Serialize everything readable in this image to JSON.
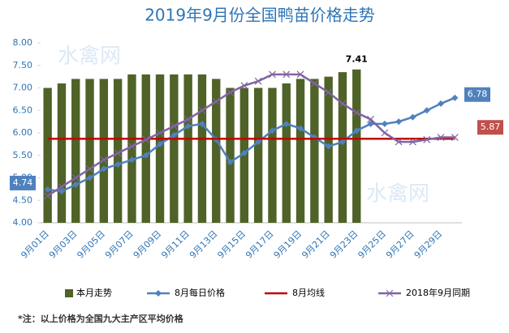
{
  "chart_data": {
    "type": "combo",
    "title": "2019年9月份全国鸭苗价格走势",
    "watermark": "水禽网",
    "note": "*注：以上价格为全国九大主产区平均价格",
    "categories": [
      "9月01日",
      null,
      "9月03日",
      null,
      "9月05日",
      null,
      "9月07日",
      null,
      "9月09日",
      null,
      "9月11日",
      null,
      "9月13日",
      null,
      "9月15日",
      null,
      "9月17日",
      null,
      "9月19日",
      null,
      "9月21日",
      null,
      "9月23日",
      null,
      "9月25日",
      null,
      "9月27日",
      null,
      "9月29日",
      null
    ],
    "ylim": [
      4,
      8
    ],
    "yticks": [
      {
        "value": 4,
        "label": "4.00"
      },
      {
        "value": 4.5,
        "label": "4.50"
      },
      {
        "value": 5,
        "label": "5.00"
      },
      {
        "value": 5.5,
        "label": "5.50"
      },
      {
        "value": 6,
        "label": "6.00"
      },
      {
        "value": 6.5,
        "label": "6.50"
      },
      {
        "value": 7,
        "label": "7.00"
      },
      {
        "value": 7.5,
        "label": "7.50"
      },
      {
        "value": 8,
        "label": "8.00"
      }
    ],
    "grid": false,
    "legend": "bottom",
    "series": [
      {
        "name": "本月走势",
        "type": "bar",
        "color": "#4f6228",
        "values": [
          7.0,
          7.1,
          7.2,
          7.2,
          7.2,
          7.2,
          7.3,
          7.3,
          7.3,
          7.3,
          7.3,
          7.3,
          7.2,
          7.0,
          7.0,
          7.0,
          7.0,
          7.1,
          7.2,
          7.2,
          7.25,
          7.35,
          7.41,
          null,
          null,
          null,
          null,
          null,
          null,
          null
        ],
        "labeled": [
          22
        ]
      },
      {
        "name": "8月每日价格",
        "type": "line",
        "marker": "diamond",
        "color": "#4f81bd",
        "values": [
          4.74,
          4.7,
          4.85,
          5.0,
          5.2,
          5.3,
          5.4,
          5.5,
          5.75,
          5.95,
          6.15,
          6.2,
          5.85,
          5.35,
          5.55,
          5.8,
          6.05,
          6.2,
          6.1,
          5.9,
          5.7,
          5.8,
          6.05,
          6.2,
          6.2,
          6.25,
          6.35,
          6.5,
          6.65,
          6.78
        ],
        "labeled": [
          0,
          29
        ]
      },
      {
        "name": "8月均线",
        "type": "line",
        "marker": "none",
        "color": "#c00000",
        "values": [
          5.87,
          5.87,
          5.87,
          5.87,
          5.87,
          5.87,
          5.87,
          5.87,
          5.87,
          5.87,
          5.87,
          5.87,
          5.87,
          5.87,
          5.87,
          5.87,
          5.87,
          5.87,
          5.87,
          5.87,
          5.87,
          5.87,
          5.87,
          5.87,
          5.87,
          5.87,
          5.87,
          5.87,
          5.87,
          5.87
        ],
        "labeled": [
          29
        ]
      },
      {
        "name": "2018年9月同期",
        "type": "line",
        "marker": "x",
        "color": "#8064a2",
        "values": [
          4.6,
          4.8,
          5.0,
          5.2,
          5.4,
          5.55,
          5.7,
          5.85,
          6.0,
          6.15,
          6.3,
          6.5,
          6.7,
          6.9,
          7.05,
          7.15,
          7.3,
          7.3,
          7.3,
          7.1,
          6.9,
          6.65,
          6.45,
          6.3,
          6.0,
          5.8,
          5.8,
          5.85,
          5.9,
          5.9
        ],
        "labeled": []
      }
    ]
  }
}
